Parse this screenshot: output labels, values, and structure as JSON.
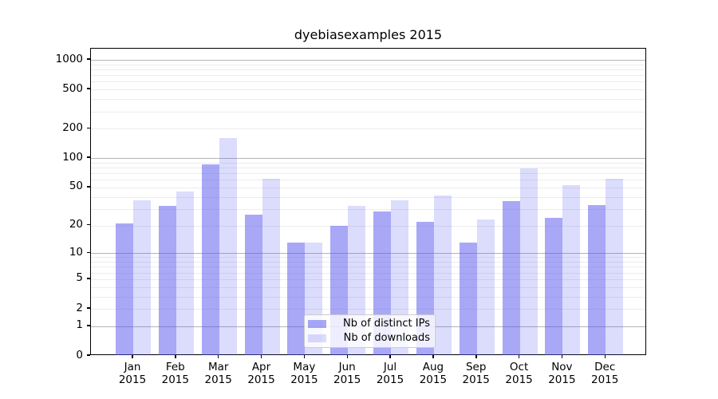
{
  "chart_data": {
    "type": "bar",
    "title": "dyebiasexamples 2015",
    "months": [
      "Jan",
      "Feb",
      "Mar",
      "Apr",
      "May",
      "Jun",
      "Jul",
      "Aug",
      "Sep",
      "Oct",
      "Nov",
      "Dec"
    ],
    "year_label": "2015",
    "series": [
      {
        "name": "Nb of distinct IPs",
        "base_color": "#5151ef",
        "alpha": 0.5,
        "appearance_over_white": "#a8a8f7",
        "values": [
          21,
          32,
          87,
          26,
          13,
          20,
          28,
          22,
          13,
          36,
          24,
          33
        ]
      },
      {
        "name": "Nb of downloads",
        "base_color": "#5151ef",
        "alpha": 0.2,
        "appearance_over_white": "#dcdcfa",
        "values": [
          37,
          45,
          160,
          62,
          13,
          32,
          37,
          41,
          23,
          78,
          53,
          62
        ]
      }
    ],
    "yscale": "log1p",
    "ylim": [
      0,
      1300
    ],
    "xlabel": "",
    "ylabel": "",
    "y_axis_ticks": [
      0,
      1,
      2,
      5,
      10,
      20,
      50,
      100,
      200,
      500,
      1000
    ],
    "y_major_gridlines": [
      1,
      10,
      100,
      1000
    ],
    "y_minor_gridlines": [
      2,
      3,
      4,
      5,
      6,
      7,
      8,
      9,
      20,
      30,
      40,
      50,
      60,
      70,
      80,
      90,
      200,
      300,
      400,
      500,
      600,
      700,
      800,
      900
    ],
    "grid": true,
    "legend": {
      "position": "lower center",
      "items": [
        "Nb of distinct IPs",
        "Nb of downloads"
      ]
    },
    "colors": {
      "background": "#ffffff",
      "axis": "#000000",
      "text": "#000000",
      "major_grid": "#b4b4b4",
      "minor_grid": "#ececec",
      "legend_border": "#cccccc",
      "legend_bg": "rgba(255,255,255,0.8)"
    }
  }
}
